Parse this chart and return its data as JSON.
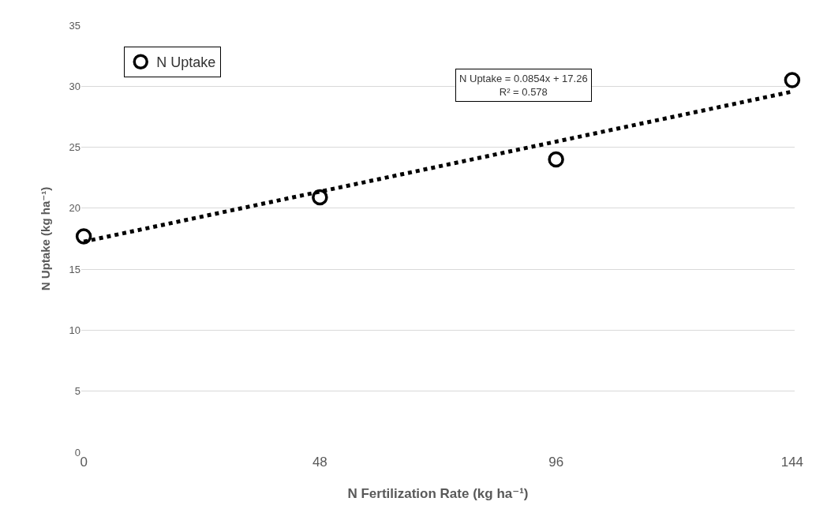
{
  "chart_data": {
    "type": "scatter",
    "xlabel": "N Fertilization Rate (kg ha⁻¹)",
    "ylabel": "N Uptake (kg ha⁻¹)",
    "x": [
      0,
      48,
      96,
      144
    ],
    "series": [
      {
        "name": "N Uptake",
        "color": "#000000",
        "values": [
          17.7,
          20.9,
          24.0,
          30.5
        ],
        "marker": "circle"
      },
      {
        "type": "line",
        "color": "#000000",
        "x": [
          0,
          144
        ],
        "values": [
          17.26,
          29.56
        ],
        "line_style": "dotted",
        "marker": "none"
      }
    ],
    "annotations": [
      "N Uptake = 0.0854x + 17.26",
      "R² = 0.578"
    ],
    "xlim": [
      -0.5,
      144.5
    ],
    "xticks": [
      0,
      48,
      96,
      144
    ],
    "ylim": [
      0,
      35
    ],
    "yticks": [
      0,
      5,
      10,
      15,
      20,
      25,
      30,
      35
    ],
    "grid": "y",
    "legend": "top left"
  }
}
